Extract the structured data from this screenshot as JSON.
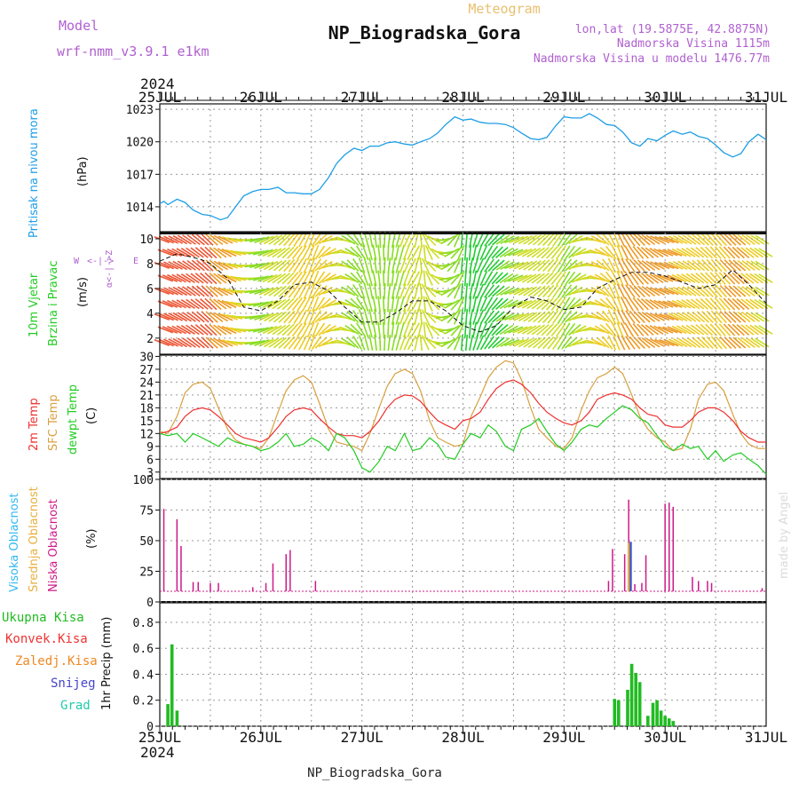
{
  "header": {
    "model_label": "Model",
    "model_name": "wrf-nmm_v3.9.1 e1km",
    "station": "NP_Biogradska_Gora",
    "meteogram_label": "Meteogram",
    "lonlat": "lon,lat (19.5875E, 42.8875N)",
    "elevation": "Nadmorska Visina 1115m",
    "model_elevation": "Nadmorska Visina u modelu 1476.77m",
    "year": "2024",
    "footer_station": "NP_Biogradska_Gora",
    "credit": "made by Angel"
  },
  "colors": {
    "pressure": "#1e9ee6",
    "t2m": "#ee3030",
    "sfc": "#d8a040",
    "dewpoint": "#22cc22",
    "cloud_low": "#cc1a88",
    "cloud_mid": "#e8b040",
    "cloud_high": "#30b8ee",
    "precip_total": "#22bb22",
    "precip_conv": "#ee3333",
    "precip_frz": "#ee8822",
    "snow": "#4444cc",
    "hail": "#22ccaa",
    "purple": "#b060d0",
    "gold": "#e8c070"
  },
  "chart_data": [
    {
      "type": "line",
      "panel": "pressure",
      "ylabel": [
        "Pritisak na nivou mora",
        "(hPa)"
      ],
      "x_ticks": [
        "25JUL",
        "26JUL",
        "27JUL",
        "28JUL",
        "29JUL",
        "30JUL",
        "31JUL"
      ],
      "yticks": [
        1014,
        1017,
        1020,
        1023
      ],
      "ylim": [
        1011.7,
        1023.5
      ],
      "x_days": [
        0,
        0.04,
        0.08,
        0.17,
        0.25,
        0.33,
        0.42,
        0.5,
        0.6,
        0.67,
        0.75,
        0.83,
        0.92,
        1.0,
        1.08,
        1.17,
        1.25,
        1.33,
        1.42,
        1.5,
        1.58,
        1.67,
        1.75,
        1.83,
        1.92,
        2.0,
        2.08,
        2.17,
        2.25,
        2.33,
        2.42,
        2.5,
        2.58,
        2.67,
        2.75,
        2.83,
        2.92,
        3.0,
        3.08,
        3.17,
        3.25,
        3.33,
        3.42,
        3.5,
        3.58,
        3.67,
        3.75,
        3.83,
        3.92,
        4.0,
        4.08,
        4.17,
        4.25,
        4.33,
        4.42,
        4.5,
        4.58,
        4.67,
        4.75,
        4.83,
        4.92,
        5.0,
        5.08,
        5.17,
        5.25,
        5.33,
        5.42,
        5.5,
        5.58,
        5.67,
        5.75,
        5.83,
        5.92,
        6.0
      ],
      "series": [
        {
          "values": [
            1014.3,
            1014.5,
            1014.2,
            1014.7,
            1014.4,
            1013.7,
            1013.3,
            1013.2,
            1012.8,
            1013.0,
            1014.0,
            1015.0,
            1015.4,
            1015.6,
            1015.6,
            1015.8,
            1015.3,
            1015.3,
            1015.2,
            1015.2,
            1015.6,
            1016.7,
            1018.0,
            1018.8,
            1019.4,
            1019.2,
            1019.6,
            1019.6,
            1019.9,
            1020.0,
            1019.8,
            1019.7,
            1020.0,
            1020.3,
            1020.8,
            1021.6,
            1022.3,
            1022.0,
            1022.1,
            1021.8,
            1021.7,
            1021.7,
            1021.6,
            1021.3,
            1020.8,
            1020.3,
            1020.2,
            1020.4,
            1021.5,
            1022.3,
            1022.2,
            1022.2,
            1022.6,
            1022.2,
            1021.6,
            1021.5,
            1020.9,
            1019.9,
            1019.6,
            1020.3,
            1020.1,
            1020.6,
            1021.0,
            1020.7,
            1020.9,
            1020.5,
            1020.3,
            1019.7,
            1019.0,
            1018.6,
            1018.9,
            1020.0,
            1020.7,
            1020.2
          ]
        }
      ]
    },
    {
      "type": "line",
      "panel": "wind",
      "ylabel": [
        "10m Vjetar",
        "Brzina i Pravac",
        "(m/s)"
      ],
      "compass": "W <-|-> E, N, S",
      "yticks": [
        2,
        4,
        6,
        8,
        10
      ],
      "ylim": [
        0.7,
        10.5
      ],
      "x_days": [
        0,
        0.17,
        0.33,
        0.42,
        0.5,
        0.67,
        0.83,
        1.0,
        1.17,
        1.33,
        1.5,
        1.67,
        1.83,
        2.0,
        2.17,
        2.33,
        2.5,
        2.67,
        2.83,
        3.0,
        3.17,
        3.33,
        3.5,
        3.67,
        3.83,
        4.0,
        4.17,
        4.33,
        4.5,
        4.67,
        4.83,
        5.0,
        5.17,
        5.33,
        5.5,
        5.67,
        5.83,
        6.0
      ],
      "series": [
        {
          "values": [
            8.2,
            8.8,
            8.5,
            8.3,
            8.0,
            6.8,
            4.5,
            4.2,
            5.0,
            6.3,
            6.5,
            5.8,
            4.5,
            3.3,
            3.3,
            4.0,
            5.0,
            5.0,
            4.2,
            3.0,
            2.5,
            3.0,
            4.5,
            5.3,
            5.0,
            4.3,
            4.5,
            6.0,
            6.7,
            7.3,
            7.3,
            7.0,
            6.5,
            6.0,
            6.3,
            7.5,
            6.3,
            4.8
          ]
        }
      ]
    },
    {
      "type": "line",
      "panel": "temperature",
      "ylabel": [
        "2m Temp",
        "SFC Temp",
        "dewpt Temp",
        "(C)"
      ],
      "yticks": [
        3,
        6,
        9,
        12,
        15,
        18,
        21,
        24,
        27,
        30
      ],
      "ylim": [
        1.5,
        30.3
      ],
      "x_days": [
        0,
        0.08,
        0.17,
        0.25,
        0.33,
        0.42,
        0.5,
        0.58,
        0.67,
        0.75,
        0.83,
        0.92,
        1.0,
        1.08,
        1.17,
        1.25,
        1.33,
        1.42,
        1.5,
        1.58,
        1.67,
        1.75,
        1.83,
        1.92,
        2.0,
        2.08,
        2.17,
        2.25,
        2.33,
        2.42,
        2.5,
        2.58,
        2.67,
        2.75,
        2.83,
        2.92,
        3.0,
        3.08,
        3.17,
        3.25,
        3.33,
        3.42,
        3.5,
        3.58,
        3.67,
        3.75,
        3.83,
        3.92,
        4.0,
        4.08,
        4.17,
        4.25,
        4.33,
        4.42,
        4.5,
        4.58,
        4.67,
        4.75,
        4.83,
        4.92,
        5.0,
        5.08,
        5.17,
        5.25,
        5.33,
        5.42,
        5.5,
        5.58,
        5.67,
        5.75,
        5.83,
        5.92,
        6.0
      ],
      "series": [
        {
          "name": "2m Temp",
          "values": [
            12.0,
            12.5,
            13.5,
            16.0,
            17.5,
            18.0,
            17.5,
            16.0,
            14.0,
            12.0,
            11.0,
            10.5,
            10.0,
            11.0,
            13.5,
            16.0,
            17.5,
            18.0,
            17.5,
            15.5,
            13.5,
            12.0,
            11.5,
            11.5,
            11.0,
            12.5,
            15.0,
            18.0,
            20.0,
            21.0,
            20.8,
            19.5,
            17.0,
            15.0,
            14.0,
            13.0,
            15.0,
            15.5,
            17.0,
            20.0,
            22.5,
            24.0,
            24.5,
            23.5,
            21.5,
            19.0,
            17.0,
            15.5,
            14.5,
            14.0,
            15.0,
            17.0,
            20.0,
            21.0,
            21.5,
            21.0,
            20.0,
            18.0,
            16.5,
            16.0,
            14.0,
            13.5,
            13.5,
            15.0,
            17.0,
            18.0,
            18.0,
            17.0,
            15.0,
            12.5,
            11.0,
            10.0,
            10.0
          ]
        },
        {
          "name": "SFC Temp",
          "values": [
            12.5,
            12.0,
            16.0,
            21.5,
            23.5,
            24.0,
            22.5,
            18.0,
            13.0,
            10.5,
            9.5,
            9.0,
            8.5,
            11.0,
            17.0,
            22.0,
            24.5,
            25.5,
            24.0,
            19.0,
            13.0,
            10.0,
            9.5,
            9.0,
            8.0,
            12.0,
            18.0,
            23.0,
            26.0,
            27.0,
            26.0,
            22.0,
            15.0,
            11.0,
            10.0,
            9.0,
            9.5,
            16.0,
            20.5,
            25.0,
            27.5,
            29.0,
            28.5,
            24.5,
            18.0,
            13.0,
            11.0,
            9.0,
            8.5,
            11.0,
            17.5,
            22.0,
            25.0,
            26.0,
            27.5,
            26.0,
            21.0,
            16.0,
            13.0,
            11.0,
            10.0,
            8.0,
            8.5,
            13.0,
            20.0,
            23.5,
            24.0,
            22.0,
            16.5,
            12.0,
            9.5,
            8.5,
            8.5
          ]
        },
        {
          "name": "dewpt Temp",
          "values": [
            12.0,
            11.5,
            12.0,
            10.0,
            12.0,
            11.0,
            10.0,
            9.0,
            11.0,
            10.0,
            9.5,
            9.0,
            8.0,
            8.5,
            10.0,
            12.0,
            9.0,
            9.5,
            11.0,
            10.0,
            8.0,
            12.0,
            11.0,
            8.0,
            4.0,
            3.0,
            5.5,
            9.0,
            8.0,
            12.0,
            8.0,
            8.5,
            11.0,
            9.5,
            6.5,
            6.0,
            9.5,
            12.0,
            11.0,
            14.0,
            12.5,
            9.0,
            8.0,
            13.0,
            14.0,
            15.5,
            12.5,
            9.5,
            8.0,
            10.0,
            13.0,
            14.0,
            13.5,
            15.5,
            17.0,
            18.5,
            17.5,
            15.5,
            14.5,
            11.5,
            9.0,
            8.0,
            9.5,
            8.5,
            9.0,
            6.0,
            8.0,
            5.5,
            7.0,
            7.5,
            6.0,
            4.5,
            2.5
          ]
        }
      ]
    },
    {
      "type": "bar",
      "panel": "clouds",
      "ylabel": [
        "Visoka Oblacnost",
        "Srednja Oblacnost",
        "Niska Oblacnost",
        "(%)"
      ],
      "yticks": [
        0,
        25,
        50,
        75,
        100
      ],
      "ylim": [
        0,
        100
      ],
      "series": [
        {
          "name": "Niska Oblacnost",
          "x_days": [
            0.04,
            0.17,
            0.21,
            0.33,
            0.38,
            0.5,
            0.58,
            0.92,
            1.05,
            1.12,
            1.25,
            1.29,
            1.54,
            4.44,
            4.48,
            4.6,
            4.64,
            4.7,
            4.77,
            4.81,
            5.0,
            5.04,
            5.08,
            5.27,
            5.33,
            5.42,
            5.46,
            5.96
          ],
          "values": [
            80,
            70,
            44,
            9,
            9,
            8,
            8,
            4,
            8,
            27,
            36,
            40,
            10,
            10,
            41,
            36,
            89,
            7,
            8,
            35,
            85,
            86,
            82,
            14,
            10,
            10,
            8,
            3
          ]
        },
        {
          "name": "Srednja Oblacnost",
          "x_days": [
            4.64
          ],
          "values": [
            47
          ]
        },
        {
          "name": "Visoka Oblacnost",
          "x_days": [
            4.66
          ],
          "values": [
            48
          ]
        }
      ]
    },
    {
      "type": "bar",
      "panel": "precip",
      "ylabel": [
        "1hr Precip (mm)"
      ],
      "legend": [
        "Ukupna Kisa",
        "Konvek.Kisa",
        "Zaledj.Kisa",
        "Snijeg",
        "Grad"
      ],
      "yticks": [
        0,
        0.2,
        0.4,
        0.6,
        0.8
      ],
      "ylim": [
        0,
        0.95
      ],
      "series": [
        {
          "name": "Ukupna Kisa",
          "x_days": [
            0.08,
            0.12,
            0.17,
            4.5,
            4.54,
            4.63,
            4.67,
            4.71,
            4.75,
            4.83,
            4.88,
            4.92,
            4.96,
            5.0,
            5.04,
            5.08
          ],
          "values": [
            0.17,
            0.63,
            0.12,
            0.21,
            0.2,
            0.28,
            0.48,
            0.41,
            0.34,
            0.08,
            0.18,
            0.2,
            0.12,
            0.08,
            0.06,
            0.04
          ]
        }
      ]
    }
  ]
}
